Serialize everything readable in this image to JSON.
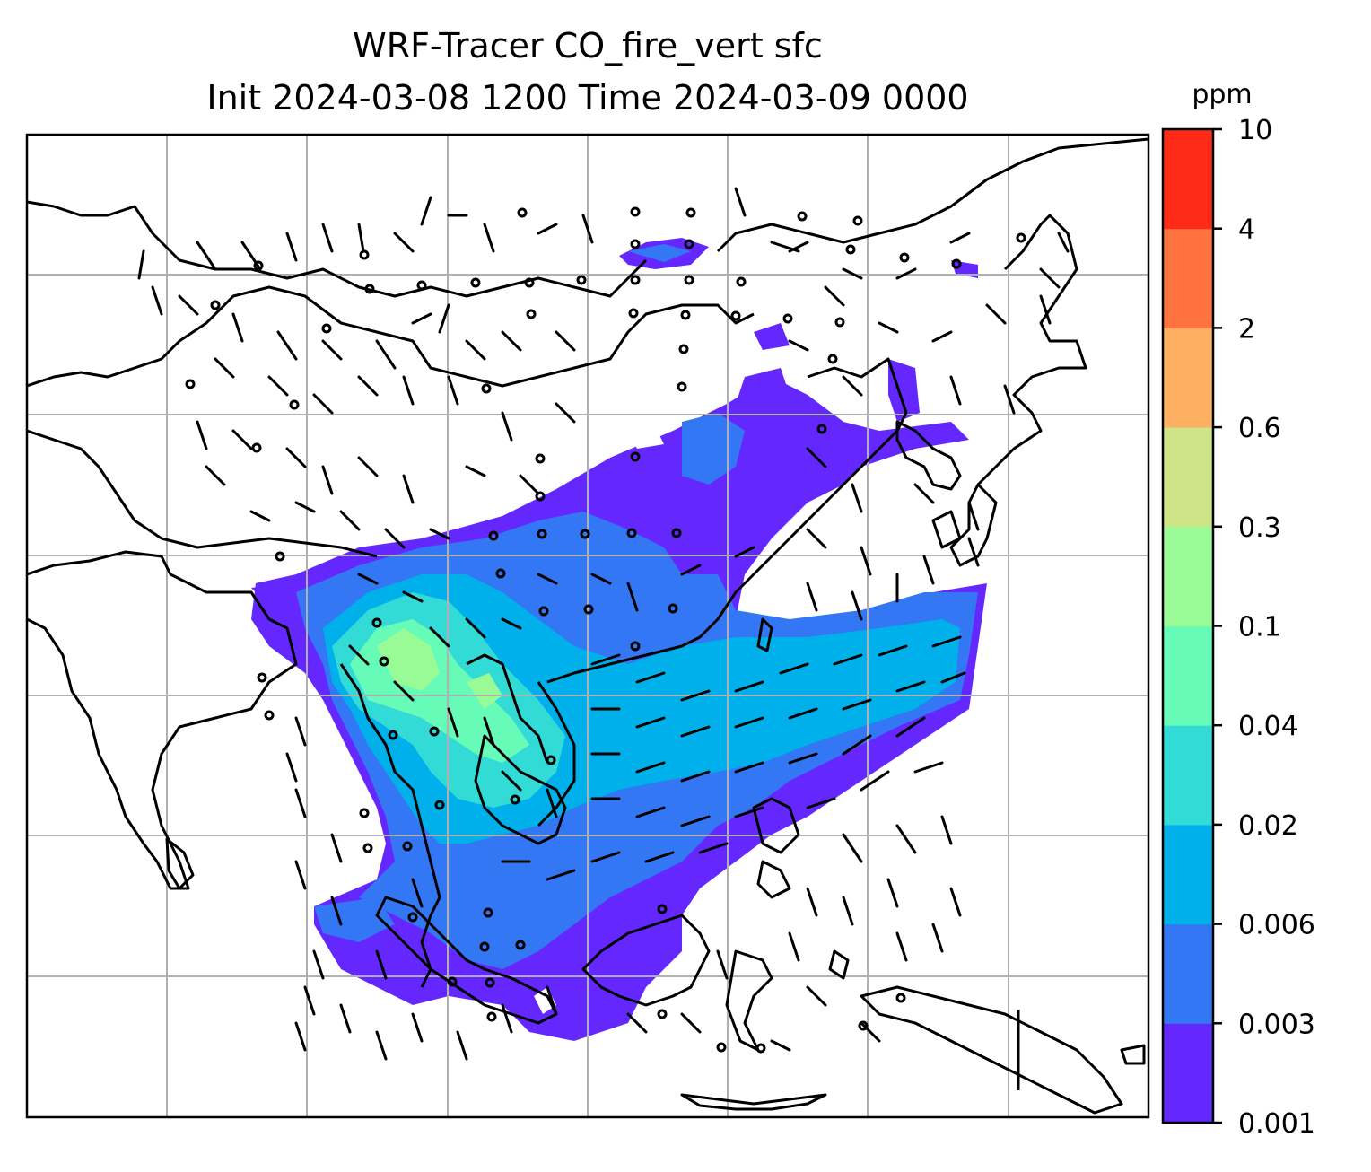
{
  "title_line1": "WRF-Tracer CO_fire_vert sfc",
  "title_line2": "Init 2024-03-08 1200 Time 2024-03-09 0000",
  "colorbar": {
    "unit": "ppm",
    "levels": [
      "0.001",
      "0.003",
      "0.006",
      "0.02",
      "0.04",
      "0.1",
      "0.3",
      "0.6",
      "2",
      "4",
      "10"
    ],
    "colors": [
      "#6428ff",
      "#3377f5",
      "#00b0ea",
      "#33dbd6",
      "#66fcb7",
      "#99fb95",
      "#cde487",
      "#feb062",
      "#ff7340",
      "#ff2a17"
    ]
  },
  "map": {
    "fill_colors": {
      "lowest": "#6428ff",
      "low": "#3377f5",
      "mid": "#00b0ea",
      "cyan": "#33dbd6",
      "green": "#66fcb7",
      "lightgreen": "#99fb95"
    },
    "coastline_color": "#000000",
    "gridline_color": "#b0b0b0",
    "wind_barbs": "shown",
    "calm_circles": "shown"
  }
}
